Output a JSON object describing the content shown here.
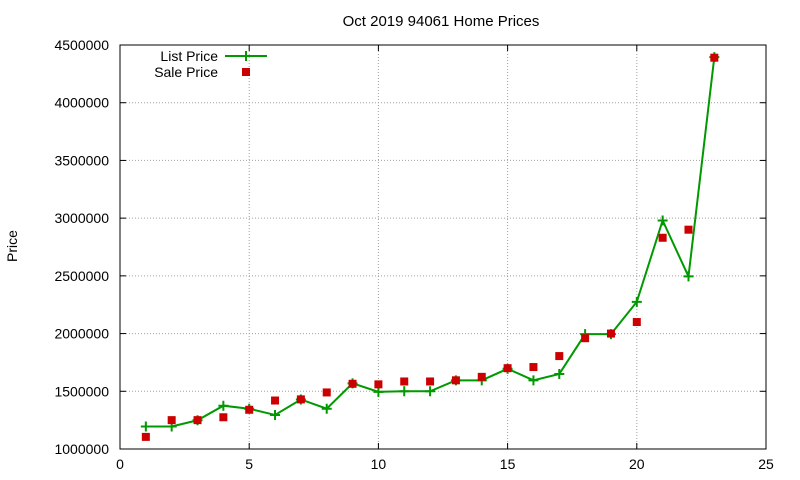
{
  "chart_data": {
    "type": "line",
    "title": "Oct 2019 94061 Home Prices",
    "xlabel": "",
    "ylabel": "Price",
    "xlim": [
      0,
      25
    ],
    "ylim": [
      1000000,
      4500000
    ],
    "x_ticks": [
      0,
      5,
      10,
      15,
      20,
      25
    ],
    "y_ticks": [
      1000000,
      1500000,
      2000000,
      2500000,
      3000000,
      3500000,
      4000000,
      4500000
    ],
    "grid": true,
    "legend_position": "top-left",
    "series": [
      {
        "name": "List Price",
        "style": "line-with-plus-markers",
        "color": "#009900",
        "x": [
          1,
          2,
          3,
          4,
          5,
          6,
          7,
          8,
          9,
          10,
          11,
          12,
          13,
          14,
          15,
          16,
          17,
          18,
          19,
          20,
          21,
          22,
          23
        ],
        "values": [
          1195000,
          1195000,
          1249000,
          1375000,
          1349000,
          1295000,
          1429000,
          1349000,
          1569000,
          1495000,
          1500000,
          1500000,
          1595000,
          1595000,
          1695000,
          1595000,
          1650000,
          1995000,
          1995000,
          2275000,
          2980000,
          2495000,
          4395000
        ]
      },
      {
        "name": "Sale Price",
        "style": "square-markers",
        "color": "#cc0000",
        "x": [
          1,
          2,
          3,
          4,
          5,
          6,
          7,
          8,
          9,
          10,
          11,
          12,
          13,
          14,
          15,
          16,
          17,
          18,
          19,
          20,
          21,
          22,
          23
        ],
        "values": [
          1105000,
          1250000,
          1250000,
          1275000,
          1340000,
          1420000,
          1430000,
          1490000,
          1565000,
          1560000,
          1585000,
          1585000,
          1595000,
          1625000,
          1700000,
          1710000,
          1805000,
          1960000,
          2000000,
          2100000,
          2830000,
          2900000,
          4390000
        ]
      }
    ]
  }
}
